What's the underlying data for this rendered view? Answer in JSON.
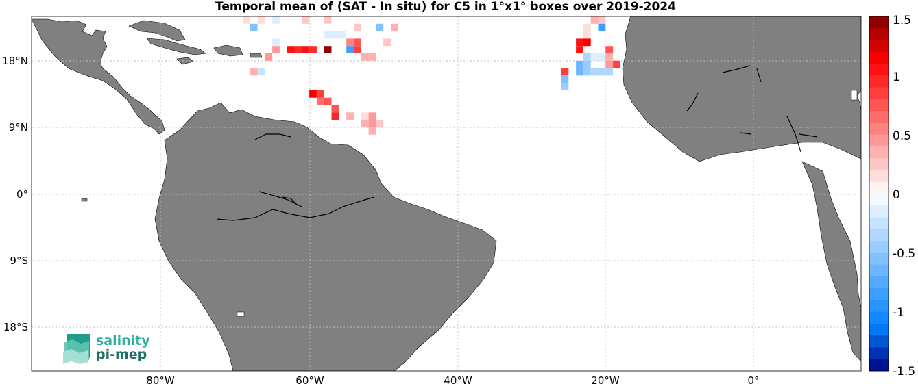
{
  "title": "Temporal mean of (SAT - In situ) for C5 in 1°x1° boxes over 2019-2024",
  "axes": {
    "lon_ticks": [
      "80°W",
      "60°W",
      "40°W",
      "20°W",
      "0°"
    ],
    "lat_ticks": [
      "18°N",
      "9°N",
      "0°",
      "9°S",
      "18°S"
    ]
  },
  "colorbar": {
    "range": [
      -1.5,
      1.5
    ],
    "tick_labels": [
      "1.5",
      "1",
      "0.5",
      "0",
      "-0.5",
      "-1",
      "-1.5"
    ]
  },
  "logo": {
    "line1": "salinity",
    "line2": "pi-mep"
  },
  "colors": {
    "land": "#808080",
    "ocean": "#ffffff",
    "grid": "#bdbdbd"
  },
  "chart_data": {
    "type": "heatmap",
    "title": "Temporal mean of (SAT - In situ) for C5 in 1°x1° boxes over 2019-2024",
    "xlabel": "",
    "ylabel": "",
    "lon_range": [
      -97.5,
      14.5
    ],
    "lat_range": [
      -24,
      24
    ],
    "value_range": [
      -1.5,
      1.5
    ],
    "cells": [
      {
        "lon": -68.5,
        "lat": 23.5,
        "value": 0.15
      },
      {
        "lon": -66.5,
        "lat": 23.5,
        "value": 0.15
      },
      {
        "lon": -64.5,
        "lat": 23.5,
        "value": -0.1
      },
      {
        "lon": -60.5,
        "lat": 23.5,
        "value": 0.2
      },
      {
        "lon": -57.5,
        "lat": 23.5,
        "value": 0.2
      },
      {
        "lon": -67.5,
        "lat": 22.5,
        "value": -0.6
      },
      {
        "lon": -53.5,
        "lat": 22.5,
        "value": 0.2
      },
      {
        "lon": -50.5,
        "lat": 22.5,
        "value": -0.6
      },
      {
        "lon": -48.5,
        "lat": 22.5,
        "value": 0.3
      },
      {
        "lon": -57.5,
        "lat": 21.5,
        "value": -0.15
      },
      {
        "lon": -56.5,
        "lat": 21.5,
        "value": -0.15
      },
      {
        "lon": -55.5,
        "lat": 21.5,
        "value": -0.15
      },
      {
        "lon": -64.5,
        "lat": 20.5,
        "value": -0.2
      },
      {
        "lon": -54.5,
        "lat": 20.5,
        "value": 0.5
      },
      {
        "lon": -53.5,
        "lat": 20.5,
        "value": 0.7
      },
      {
        "lon": -49.5,
        "lat": 20.5,
        "value": 0.2
      },
      {
        "lon": -64.5,
        "lat": 19.5,
        "value": 0.45
      },
      {
        "lon": -62.5,
        "lat": 19.5,
        "value": 1.0
      },
      {
        "lon": -61.5,
        "lat": 19.5,
        "value": 0.95
      },
      {
        "lon": -60.5,
        "lat": 19.5,
        "value": 1.0
      },
      {
        "lon": -59.5,
        "lat": 19.5,
        "value": 0.95
      },
      {
        "lon": -57.5,
        "lat": 19.5,
        "value": 1.4
      },
      {
        "lon": -54.5,
        "lat": 19.5,
        "value": -0.8
      },
      {
        "lon": -53.5,
        "lat": 19.5,
        "value": 0.8
      },
      {
        "lon": -65.5,
        "lat": 18.5,
        "value": 0.45
      },
      {
        "lon": -52.5,
        "lat": 18.5,
        "value": 0.3
      },
      {
        "lon": -51.5,
        "lat": 18.5,
        "value": 0.3
      },
      {
        "lon": -67.5,
        "lat": 16.5,
        "value": 0.35
      },
      {
        "lon": -66.5,
        "lat": 16.5,
        "value": -0.25
      },
      {
        "lon": -59.5,
        "lat": 13.5,
        "value": 1.15
      },
      {
        "lon": -58.5,
        "lat": 13.5,
        "value": 0.85
      },
      {
        "lon": -58.5,
        "lat": 12.5,
        "value": 0.6
      },
      {
        "lon": -57.5,
        "lat": 12.5,
        "value": 0.7
      },
      {
        "lon": -56.5,
        "lat": 11.5,
        "value": 0.75
      },
      {
        "lon": -56.5,
        "lat": 10.5,
        "value": 0.95
      },
      {
        "lon": -54.5,
        "lat": 10.5,
        "value": 0.35
      },
      {
        "lon": -52.5,
        "lat": 10.5,
        "value": 0.15
      },
      {
        "lon": -51.5,
        "lat": 10.5,
        "value": 0.4
      },
      {
        "lon": -52.5,
        "lat": 9.5,
        "value": 0.35
      },
      {
        "lon": -51.5,
        "lat": 9.5,
        "value": 0.45
      },
      {
        "lon": -50.5,
        "lat": 9.5,
        "value": 0.2
      },
      {
        "lon": -51.5,
        "lat": 8.5,
        "value": 0.35
      },
      {
        "lon": -21.5,
        "lat": 23.5,
        "value": 0.35
      },
      {
        "lon": -20.5,
        "lat": 23.5,
        "value": 0.25
      },
      {
        "lon": -22.5,
        "lat": 22.5,
        "value": 0.15
      },
      {
        "lon": -20.5,
        "lat": 22.5,
        "value": -0.8
      },
      {
        "lon": -22.5,
        "lat": 21.5,
        "value": 0.15
      },
      {
        "lon": -23.5,
        "lat": 20.5,
        "value": 1.0
      },
      {
        "lon": -22.5,
        "lat": 20.5,
        "value": 1.1
      },
      {
        "lon": -23.5,
        "lat": 19.5,
        "value": 1.0
      },
      {
        "lon": -19.5,
        "lat": 19.5,
        "value": 0.7
      },
      {
        "lon": -22.5,
        "lat": 18.5,
        "value": -0.3
      },
      {
        "lon": -21.5,
        "lat": 18.5,
        "value": -0.2
      },
      {
        "lon": -20.5,
        "lat": 18.5,
        "value": -0.2
      },
      {
        "lon": -19.5,
        "lat": 18.5,
        "value": 0.3
      },
      {
        "lon": -23.5,
        "lat": 17.5,
        "value": -0.7
      },
      {
        "lon": -22.5,
        "lat": 17.5,
        "value": -0.5
      },
      {
        "lon": -19.5,
        "lat": 17.5,
        "value": 0.4
      },
      {
        "lon": -18.5,
        "lat": 17.5,
        "value": 0.85
      },
      {
        "lon": -23.5,
        "lat": 16.5,
        "value": -0.65
      },
      {
        "lon": -22.5,
        "lat": 16.5,
        "value": -0.45
      },
      {
        "lon": -21.5,
        "lat": 16.5,
        "value": -0.35
      },
      {
        "lon": -20.5,
        "lat": 16.5,
        "value": -0.3
      },
      {
        "lon": -19.5,
        "lat": 16.5,
        "value": -0.3
      },
      {
        "lon": -25.5,
        "lat": 16.5,
        "value": 0.9
      },
      {
        "lon": -25.5,
        "lat": 15.5,
        "value": -0.55
      },
      {
        "lon": -25.5,
        "lat": 14.5,
        "value": -0.5
      }
    ]
  }
}
